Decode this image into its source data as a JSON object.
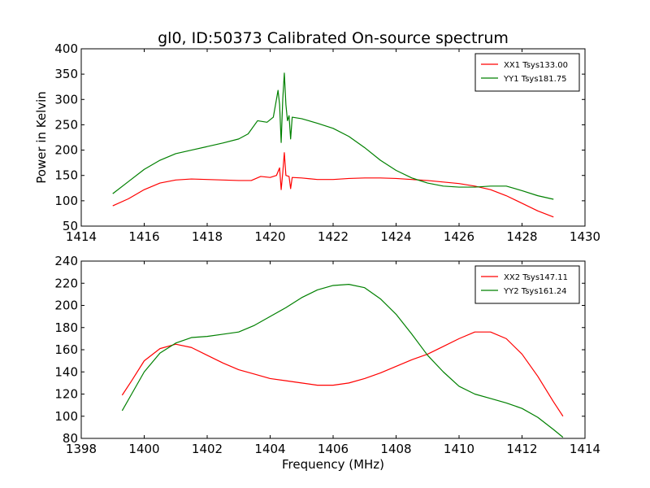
{
  "figure": {
    "title": "gl0, ID:50373 Calibrated On-source spectrum"
  },
  "chart_data": [
    {
      "type": "line",
      "title": "gl0, ID:50373 Calibrated On-source spectrum",
      "xlabel": "",
      "ylabel": "Power in Kelvin",
      "xlim": [
        1414,
        1430
      ],
      "ylim": [
        50,
        400
      ],
      "xticks": [
        1414,
        1416,
        1418,
        1420,
        1422,
        1424,
        1426,
        1428,
        1430
      ],
      "yticks": [
        50,
        100,
        150,
        200,
        250,
        300,
        350,
        400
      ],
      "grid": false,
      "legend_position": "top-right",
      "series": [
        {
          "name": "XX1 Tsys133.00",
          "color": "#ff0000",
          "points": [
            [
              1415,
              90
            ],
            [
              1415.5,
              104
            ],
            [
              1416,
              122
            ],
            [
              1416.5,
              135
            ],
            [
              1417,
              141
            ],
            [
              1417.5,
              143
            ],
            [
              1418,
              142
            ],
            [
              1418.5,
              141
            ],
            [
              1419,
              140
            ],
            [
              1419.4,
              140
            ],
            [
              1419.7,
              148
            ],
            [
              1420,
              146
            ],
            [
              1420.2,
              150
            ],
            [
              1420.3,
              165
            ],
            [
              1420.35,
              122
            ],
            [
              1420.4,
              155
            ],
            [
              1420.45,
              195
            ],
            [
              1420.5,
              150
            ],
            [
              1420.6,
              148
            ],
            [
              1420.65,
              124
            ],
            [
              1420.7,
              146
            ],
            [
              1421,
              145
            ],
            [
              1421.5,
              142
            ],
            [
              1422,
              142
            ],
            [
              1422.5,
              144
            ],
            [
              1423,
              145
            ],
            [
              1423.5,
              145
            ],
            [
              1424,
              144
            ],
            [
              1424.5,
              142
            ],
            [
              1425,
              140
            ],
            [
              1425.5,
              137
            ],
            [
              1426,
              134
            ],
            [
              1426.5,
              129
            ],
            [
              1427,
              122
            ],
            [
              1427.5,
              110
            ],
            [
              1428,
              95
            ],
            [
              1428.5,
              80
            ],
            [
              1429,
              68
            ]
          ]
        },
        {
          "name": "YY1 Tsys181.75",
          "color": "#008000",
          "points": [
            [
              1415,
              114
            ],
            [
              1415.5,
              138
            ],
            [
              1416,
              162
            ],
            [
              1416.5,
              180
            ],
            [
              1417,
              193
            ],
            [
              1417.5,
              200
            ],
            [
              1418,
              207
            ],
            [
              1418.5,
              214
            ],
            [
              1419,
              222
            ],
            [
              1419.3,
              232
            ],
            [
              1419.6,
              258
            ],
            [
              1419.9,
              255
            ],
            [
              1420.1,
              265
            ],
            [
              1420.2,
              300
            ],
            [
              1420.25,
              318
            ],
            [
              1420.3,
              290
            ],
            [
              1420.35,
              215
            ],
            [
              1420.4,
              300
            ],
            [
              1420.45,
              352
            ],
            [
              1420.5,
              290
            ],
            [
              1420.55,
              258
            ],
            [
              1420.6,
              268
            ],
            [
              1420.65,
              222
            ],
            [
              1420.7,
              265
            ],
            [
              1421,
              262
            ],
            [
              1421.5,
              253
            ],
            [
              1422,
              243
            ],
            [
              1422.5,
              227
            ],
            [
              1423,
              205
            ],
            [
              1423.5,
              180
            ],
            [
              1424,
              160
            ],
            [
              1424.5,
              145
            ],
            [
              1425,
              135
            ],
            [
              1425.5,
              129
            ],
            [
              1426,
              127
            ],
            [
              1426.5,
              127
            ],
            [
              1427,
              129
            ],
            [
              1427.5,
              129
            ],
            [
              1428,
              120
            ],
            [
              1428.5,
              110
            ],
            [
              1429,
              103
            ]
          ]
        }
      ]
    },
    {
      "type": "line",
      "title": "",
      "xlabel": "Frequency (MHz)",
      "ylabel": "",
      "xlim": [
        1398,
        1414
      ],
      "ylim": [
        80,
        240
      ],
      "xticks": [
        1398,
        1400,
        1402,
        1404,
        1406,
        1408,
        1410,
        1412,
        1414
      ],
      "yticks": [
        80,
        100,
        120,
        140,
        160,
        180,
        200,
        220,
        240
      ],
      "grid": false,
      "legend_position": "top-right",
      "series": [
        {
          "name": "XX2 Tsys147.11",
          "color": "#ff0000",
          "points": [
            [
              1399.3,
              119
            ],
            [
              1399.6,
              132
            ],
            [
              1400,
              150
            ],
            [
              1400.5,
              161
            ],
            [
              1401,
              165
            ],
            [
              1401.5,
              162
            ],
            [
              1402,
              155
            ],
            [
              1402.5,
              148
            ],
            [
              1403,
              142
            ],
            [
              1403.5,
              138
            ],
            [
              1404,
              134
            ],
            [
              1404.5,
              132
            ],
            [
              1405,
              130
            ],
            [
              1405.5,
              128
            ],
            [
              1406,
              128
            ],
            [
              1406.5,
              130
            ],
            [
              1407,
              134
            ],
            [
              1407.5,
              139
            ],
            [
              1408,
              145
            ],
            [
              1408.5,
              151
            ],
            [
              1409,
              156
            ],
            [
              1409.5,
              163
            ],
            [
              1410,
              170
            ],
            [
              1410.5,
              176
            ],
            [
              1411,
              176
            ],
            [
              1411.5,
              170
            ],
            [
              1412,
              156
            ],
            [
              1412.5,
              136
            ],
            [
              1413,
              113
            ],
            [
              1413.3,
              100
            ]
          ]
        },
        {
          "name": "YY2 Tsys161.24",
          "color": "#008000",
          "points": [
            [
              1399.3,
              105
            ],
            [
              1399.6,
              120
            ],
            [
              1400,
              140
            ],
            [
              1400.5,
              157
            ],
            [
              1401,
              166
            ],
            [
              1401.5,
              171
            ],
            [
              1402,
              172
            ],
            [
              1402.5,
              174
            ],
            [
              1403,
              176
            ],
            [
              1403.5,
              182
            ],
            [
              1404,
              190
            ],
            [
              1404.5,
              198
            ],
            [
              1405,
              207
            ],
            [
              1405.5,
              214
            ],
            [
              1406,
              218
            ],
            [
              1406.5,
              219
            ],
            [
              1407,
              216
            ],
            [
              1407.5,
              206
            ],
            [
              1408,
              192
            ],
            [
              1408.5,
              174
            ],
            [
              1409,
              155
            ],
            [
              1409.5,
              140
            ],
            [
              1410,
              127
            ],
            [
              1410.5,
              120
            ],
            [
              1411,
              116
            ],
            [
              1411.5,
              112
            ],
            [
              1412,
              107
            ],
            [
              1412.5,
              99
            ],
            [
              1413,
              88
            ],
            [
              1413.3,
              81
            ]
          ]
        }
      ]
    }
  ]
}
